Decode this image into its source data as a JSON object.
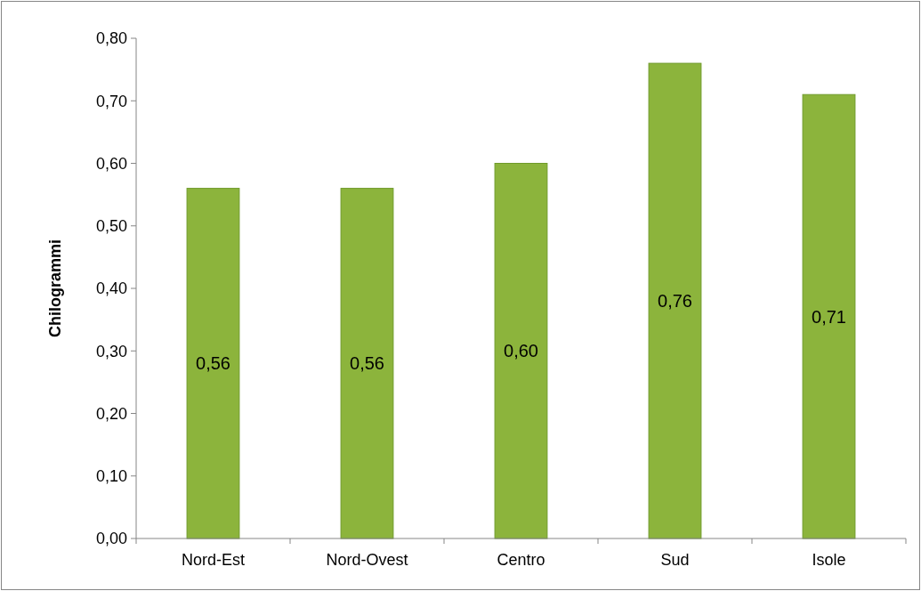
{
  "chart_data": {
    "type": "bar",
    "ylabel": "Chilogrammi",
    "categories": [
      "Nord-Est",
      "Nord-Ovest",
      "Centro",
      "Sud",
      "Isole"
    ],
    "values": [
      0.56,
      0.56,
      0.6,
      0.76,
      0.71
    ],
    "value_labels": [
      "0,56",
      "0,56",
      "0,60",
      "0,76",
      "0,71"
    ],
    "color": "#8cb43c",
    "ylim": [
      0,
      0.8
    ],
    "yticks": [
      {
        "value": 0,
        "label": "0,00"
      },
      {
        "value": 0.1,
        "label": "0,10"
      },
      {
        "value": 0.2,
        "label": "0,20"
      },
      {
        "value": 0.3,
        "label": "0,30"
      },
      {
        "value": 0.4,
        "label": "0,40"
      },
      {
        "value": 0.5,
        "label": "0,50"
      },
      {
        "value": 0.6,
        "label": "0,60"
      },
      {
        "value": 0.7,
        "label": "0,70"
      },
      {
        "value": 0.8,
        "label": "0,80"
      }
    ],
    "grid": false
  }
}
